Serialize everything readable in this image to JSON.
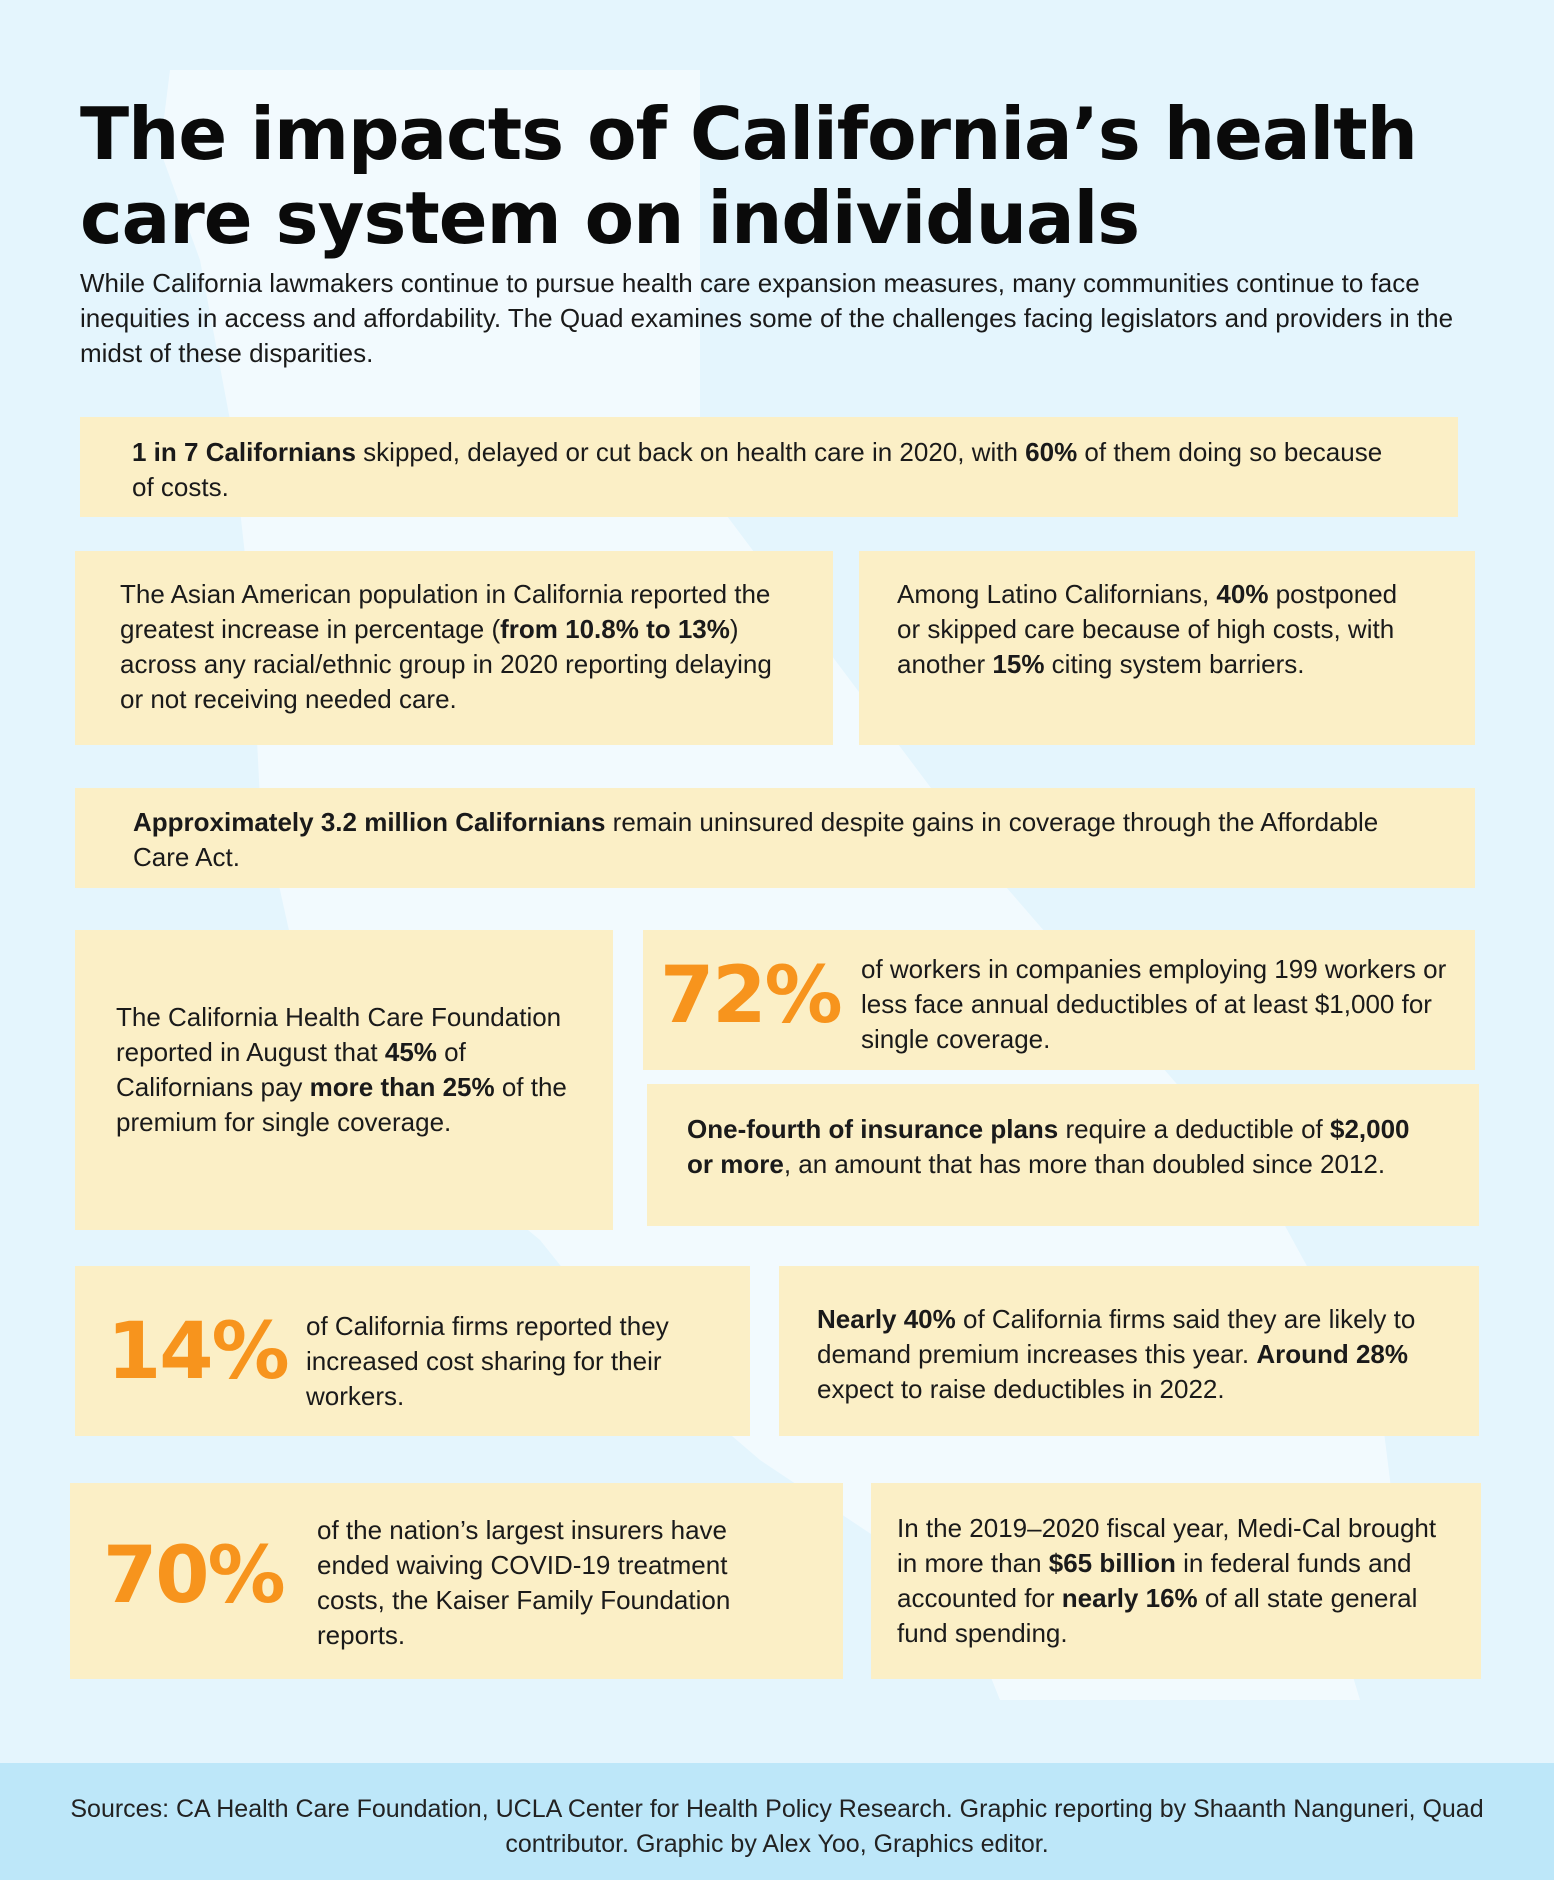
{
  "title": "The impacts of California’s health care system on individuals",
  "intro": "While California lawmakers continue to pursue health care expansion measures, many communities continue to face inequities in access and affordability. The Quad examines some of the challenges facing legislators and providers in the midst of these disparities.",
  "colors": {
    "background": "#e4f5fd",
    "card": "#fbefc6",
    "accent": "#f7941d",
    "footer": "#bde7f9",
    "silhouette": "#f2fafe"
  },
  "cards": {
    "skipped_care": {
      "b1": "1 in 7 Californians",
      "t1": " skipped, delayed or cut back on health care in 2020, with ",
      "b2": "60%",
      "t2": " of them doing so because of costs."
    },
    "asian_american": {
      "t1": "The Asian American population in California reported the greatest increase in percentage (",
      "b1": "from 10.8% to 13%",
      "t2": ") across any racial/ethnic group in 2020 reporting delaying or not receiving needed care."
    },
    "latino": {
      "t1": "Among Latino Californians, ",
      "b1": "40%",
      "t2": " postponed or skipped care because of high costs, with another ",
      "b2": "15%",
      "t3": " citing system barriers."
    },
    "uninsured": {
      "b1": "Approximately 3.2 million Californians",
      "t1": " remain uninsured despite gains in coverage through the Affordable Care Act."
    },
    "premium": {
      "t1": "The California Health Care Foundation reported in August that ",
      "b1": "45%",
      "t2": " of Californians pay ",
      "b2": "more than 25%",
      "t3": " of the premium for single coverage."
    },
    "deductibles_workers": {
      "stat": "72%",
      "text": "of workers in companies employing 199 workers or less face annual deductibles of at least $1,000 for single coverage."
    },
    "one_fourth": {
      "b1": "One-fourth of insurance plans",
      "t1": " require a deductible of ",
      "b2": "$2,000 or more",
      "t2": ", an amount that has more than doubled since 2012."
    },
    "cost_sharing": {
      "stat": "14%",
      "text": "of California firms reported they increased cost sharing for their workers."
    },
    "firms": {
      "b1": "Nearly 40%",
      "t1": " of California firms said they are likely to demand premium increases this year. ",
      "b2": "Around 28%",
      "t2": " expect to raise deductibles in 2022."
    },
    "insurers": {
      "stat": "70%",
      "text": "of the nation’s largest insurers have ended waiving COVID-19 treatment costs, the Kaiser Family Foundation reports."
    },
    "medi_cal": {
      "t1": "In the 2019–2020 fiscal year, Medi-Cal brought in more than ",
      "b1": "$65 billion",
      "t2": " in federal funds and accounted for ",
      "b2": "nearly 16%",
      "t3": " of all state general fund spending."
    }
  },
  "footer": "Sources: CA Health Care Foundation, UCLA Center for Health Policy Research. Graphic reporting by Shaanth Nanguneri, Quad contributor. Graphic by Alex Yoo, Graphics editor."
}
